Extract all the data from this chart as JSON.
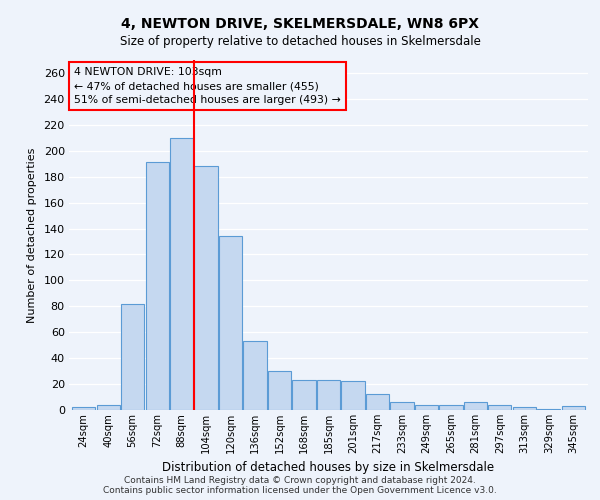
{
  "title1": "4, NEWTON DRIVE, SKELMERSDALE, WN8 6PX",
  "title2": "Size of property relative to detached houses in Skelmersdale",
  "xlabel": "Distribution of detached houses by size in Skelmersdale",
  "ylabel": "Number of detached properties",
  "categories": [
    "24sqm",
    "40sqm",
    "56sqm",
    "72sqm",
    "88sqm",
    "104sqm",
    "120sqm",
    "136sqm",
    "152sqm",
    "168sqm",
    "185sqm",
    "201sqm",
    "217sqm",
    "233sqm",
    "249sqm",
    "265sqm",
    "281sqm",
    "297sqm",
    "313sqm",
    "329sqm",
    "345sqm"
  ],
  "values": [
    2,
    4,
    82,
    191,
    210,
    188,
    134,
    53,
    30,
    23,
    23,
    22,
    12,
    6,
    4,
    4,
    6,
    4,
    2,
    1,
    3
  ],
  "bar_color": "#c5d8f0",
  "bar_edge_color": "#5b9bd5",
  "marker_label_line1": "4 NEWTON DRIVE: 103sqm",
  "marker_label_line2": "← 47% of detached houses are smaller (455)",
  "marker_label_line3": "51% of semi-detached houses are larger (493) →",
  "vline_color": "red",
  "vline_x": 4.5,
  "annotation_box_color": "red",
  "ylim": [
    0,
    270
  ],
  "yticks": [
    0,
    20,
    40,
    60,
    80,
    100,
    120,
    140,
    160,
    180,
    200,
    220,
    240,
    260
  ],
  "bg_color": "#eef3fb",
  "grid_color": "#ffffff",
  "footer1": "Contains HM Land Registry data © Crown copyright and database right 2024.",
  "footer2": "Contains public sector information licensed under the Open Government Licence v3.0."
}
